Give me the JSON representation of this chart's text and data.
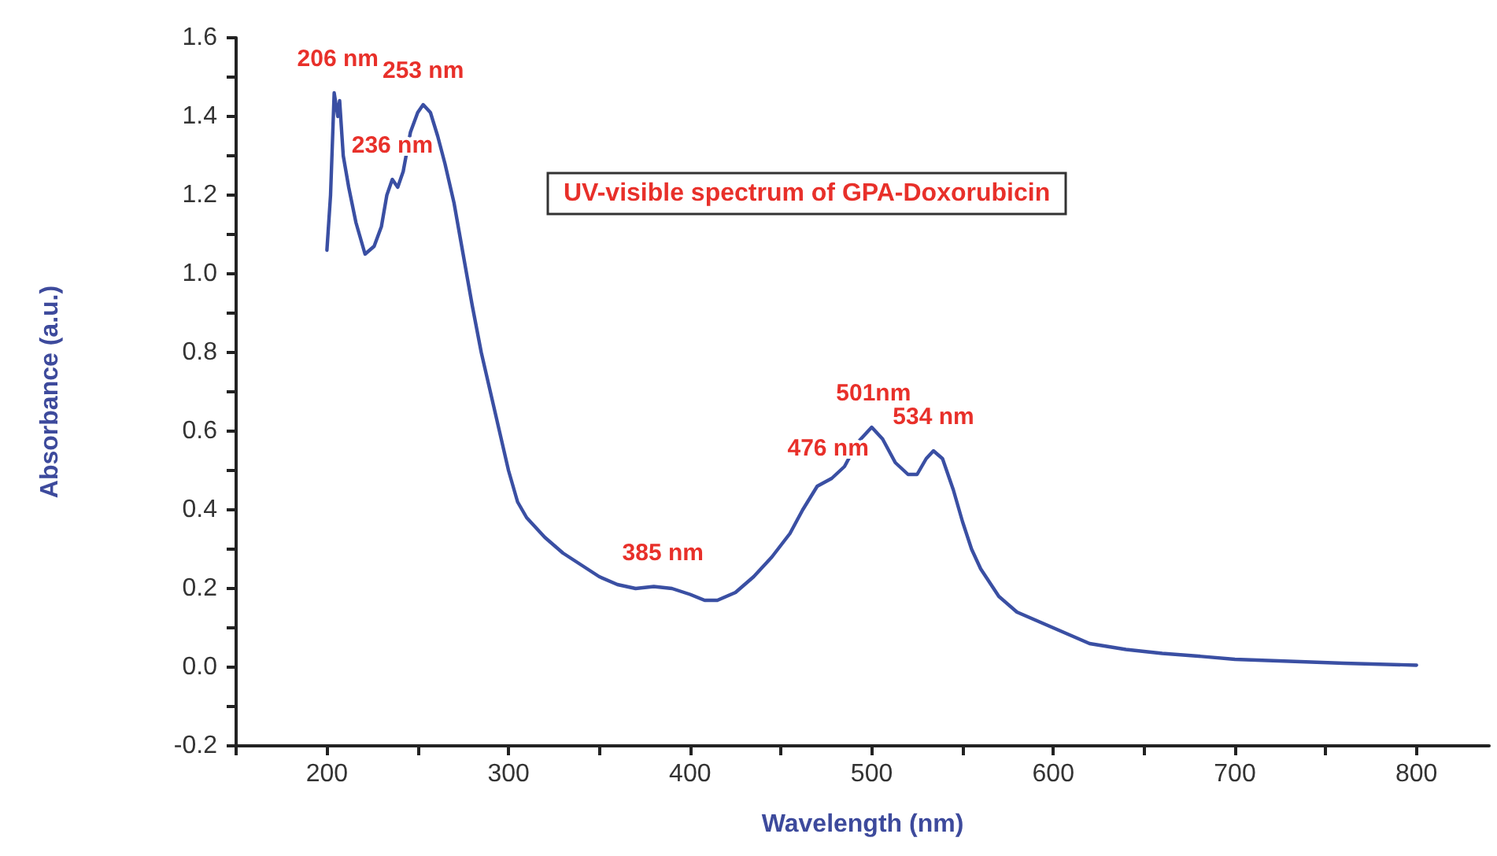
{
  "chart_data": {
    "type": "line",
    "title": "UV-visible spectrum of GPA-Doxorubicin",
    "xlabel": "Wavelength (nm)",
    "ylabel": "Absorbance (a.u.)",
    "x": [
      200,
      202,
      204,
      206,
      207,
      209,
      212,
      216,
      221,
      226,
      230,
      233,
      236,
      239,
      242,
      246,
      250,
      253,
      257,
      261,
      265,
      270,
      275,
      280,
      285,
      290,
      295,
      300,
      305,
      310,
      320,
      330,
      340,
      350,
      360,
      370,
      380,
      390,
      400,
      408,
      415,
      425,
      435,
      445,
      455,
      462,
      470,
      478,
      485,
      492,
      500,
      506,
      513,
      520,
      525,
      530,
      534,
      539,
      545,
      550,
      555,
      560,
      570,
      580,
      590,
      600,
      610,
      620,
      640,
      660,
      680,
      700,
      730,
      760,
      800
    ],
    "series": [
      {
        "color": "#3a4fa3",
        "values": [
          1.06,
          1.2,
          1.46,
          1.4,
          1.44,
          1.3,
          1.22,
          1.13,
          1.05,
          1.07,
          1.12,
          1.2,
          1.24,
          1.22,
          1.26,
          1.36,
          1.41,
          1.43,
          1.41,
          1.35,
          1.28,
          1.18,
          1.05,
          0.92,
          0.8,
          0.7,
          0.6,
          0.5,
          0.42,
          0.38,
          0.33,
          0.29,
          0.26,
          0.23,
          0.21,
          0.2,
          0.205,
          0.2,
          0.185,
          0.17,
          0.17,
          0.19,
          0.23,
          0.28,
          0.34,
          0.4,
          0.46,
          0.48,
          0.51,
          0.57,
          0.61,
          0.58,
          0.52,
          0.49,
          0.49,
          0.53,
          0.55,
          0.53,
          0.45,
          0.37,
          0.3,
          0.25,
          0.18,
          0.14,
          0.12,
          0.1,
          0.08,
          0.06,
          0.045,
          0.035,
          0.028,
          0.02,
          0.015,
          0.01,
          0.005
        ]
      }
    ],
    "xlim": [
      150,
      840
    ],
    "xticks": [
      {
        "value": 150,
        "label": null
      },
      200,
      {
        "value": 250,
        "label": null
      },
      300,
      {
        "value": 350,
        "label": null
      },
      400,
      {
        "value": 450,
        "label": null
      },
      500,
      {
        "value": 550,
        "label": null
      },
      600,
      {
        "value": 650,
        "label": null
      },
      700,
      {
        "value": 750,
        "label": null
      },
      800
    ],
    "ylim": [
      -0.2,
      1.6
    ],
    "yticks": [
      {
        "value": -0.2,
        "label": "-0.2"
      },
      {
        "value": -0.1,
        "label": null
      },
      {
        "value": 0,
        "label": "0.0"
      },
      {
        "value": 0.1,
        "label": null
      },
      0.2,
      {
        "value": 0.3,
        "label": null
      },
      0.4,
      {
        "value": 0.5,
        "label": null
      },
      0.6,
      {
        "value": 0.7,
        "label": null
      },
      0.8,
      {
        "value": 0.9,
        "label": null
      },
      {
        "value": 1,
        "label": "1.0"
      },
      {
        "value": 1.1,
        "label": null
      },
      1.2,
      {
        "value": 1.3,
        "label": null
      },
      1.4,
      {
        "value": 1.5,
        "label": null
      },
      1.6
    ],
    "annotations": [
      {
        "text": "206 nm",
        "x": 206,
        "y": 1.46
      },
      {
        "text": "236 nm",
        "x": 236,
        "y": 1.24
      },
      {
        "text": "253 nm",
        "x": 253,
        "y": 1.43
      },
      {
        "text": "385 nm",
        "x": 385,
        "y": 0.205
      },
      {
        "text": "476 nm",
        "x": 476,
        "y": 0.47
      },
      {
        "text": "501nm",
        "x": 501,
        "y": 0.61
      },
      {
        "text": "534 nm",
        "x": 534,
        "y": 0.55
      }
    ],
    "grid": false,
    "marker": "none",
    "line_style": "solid"
  }
}
